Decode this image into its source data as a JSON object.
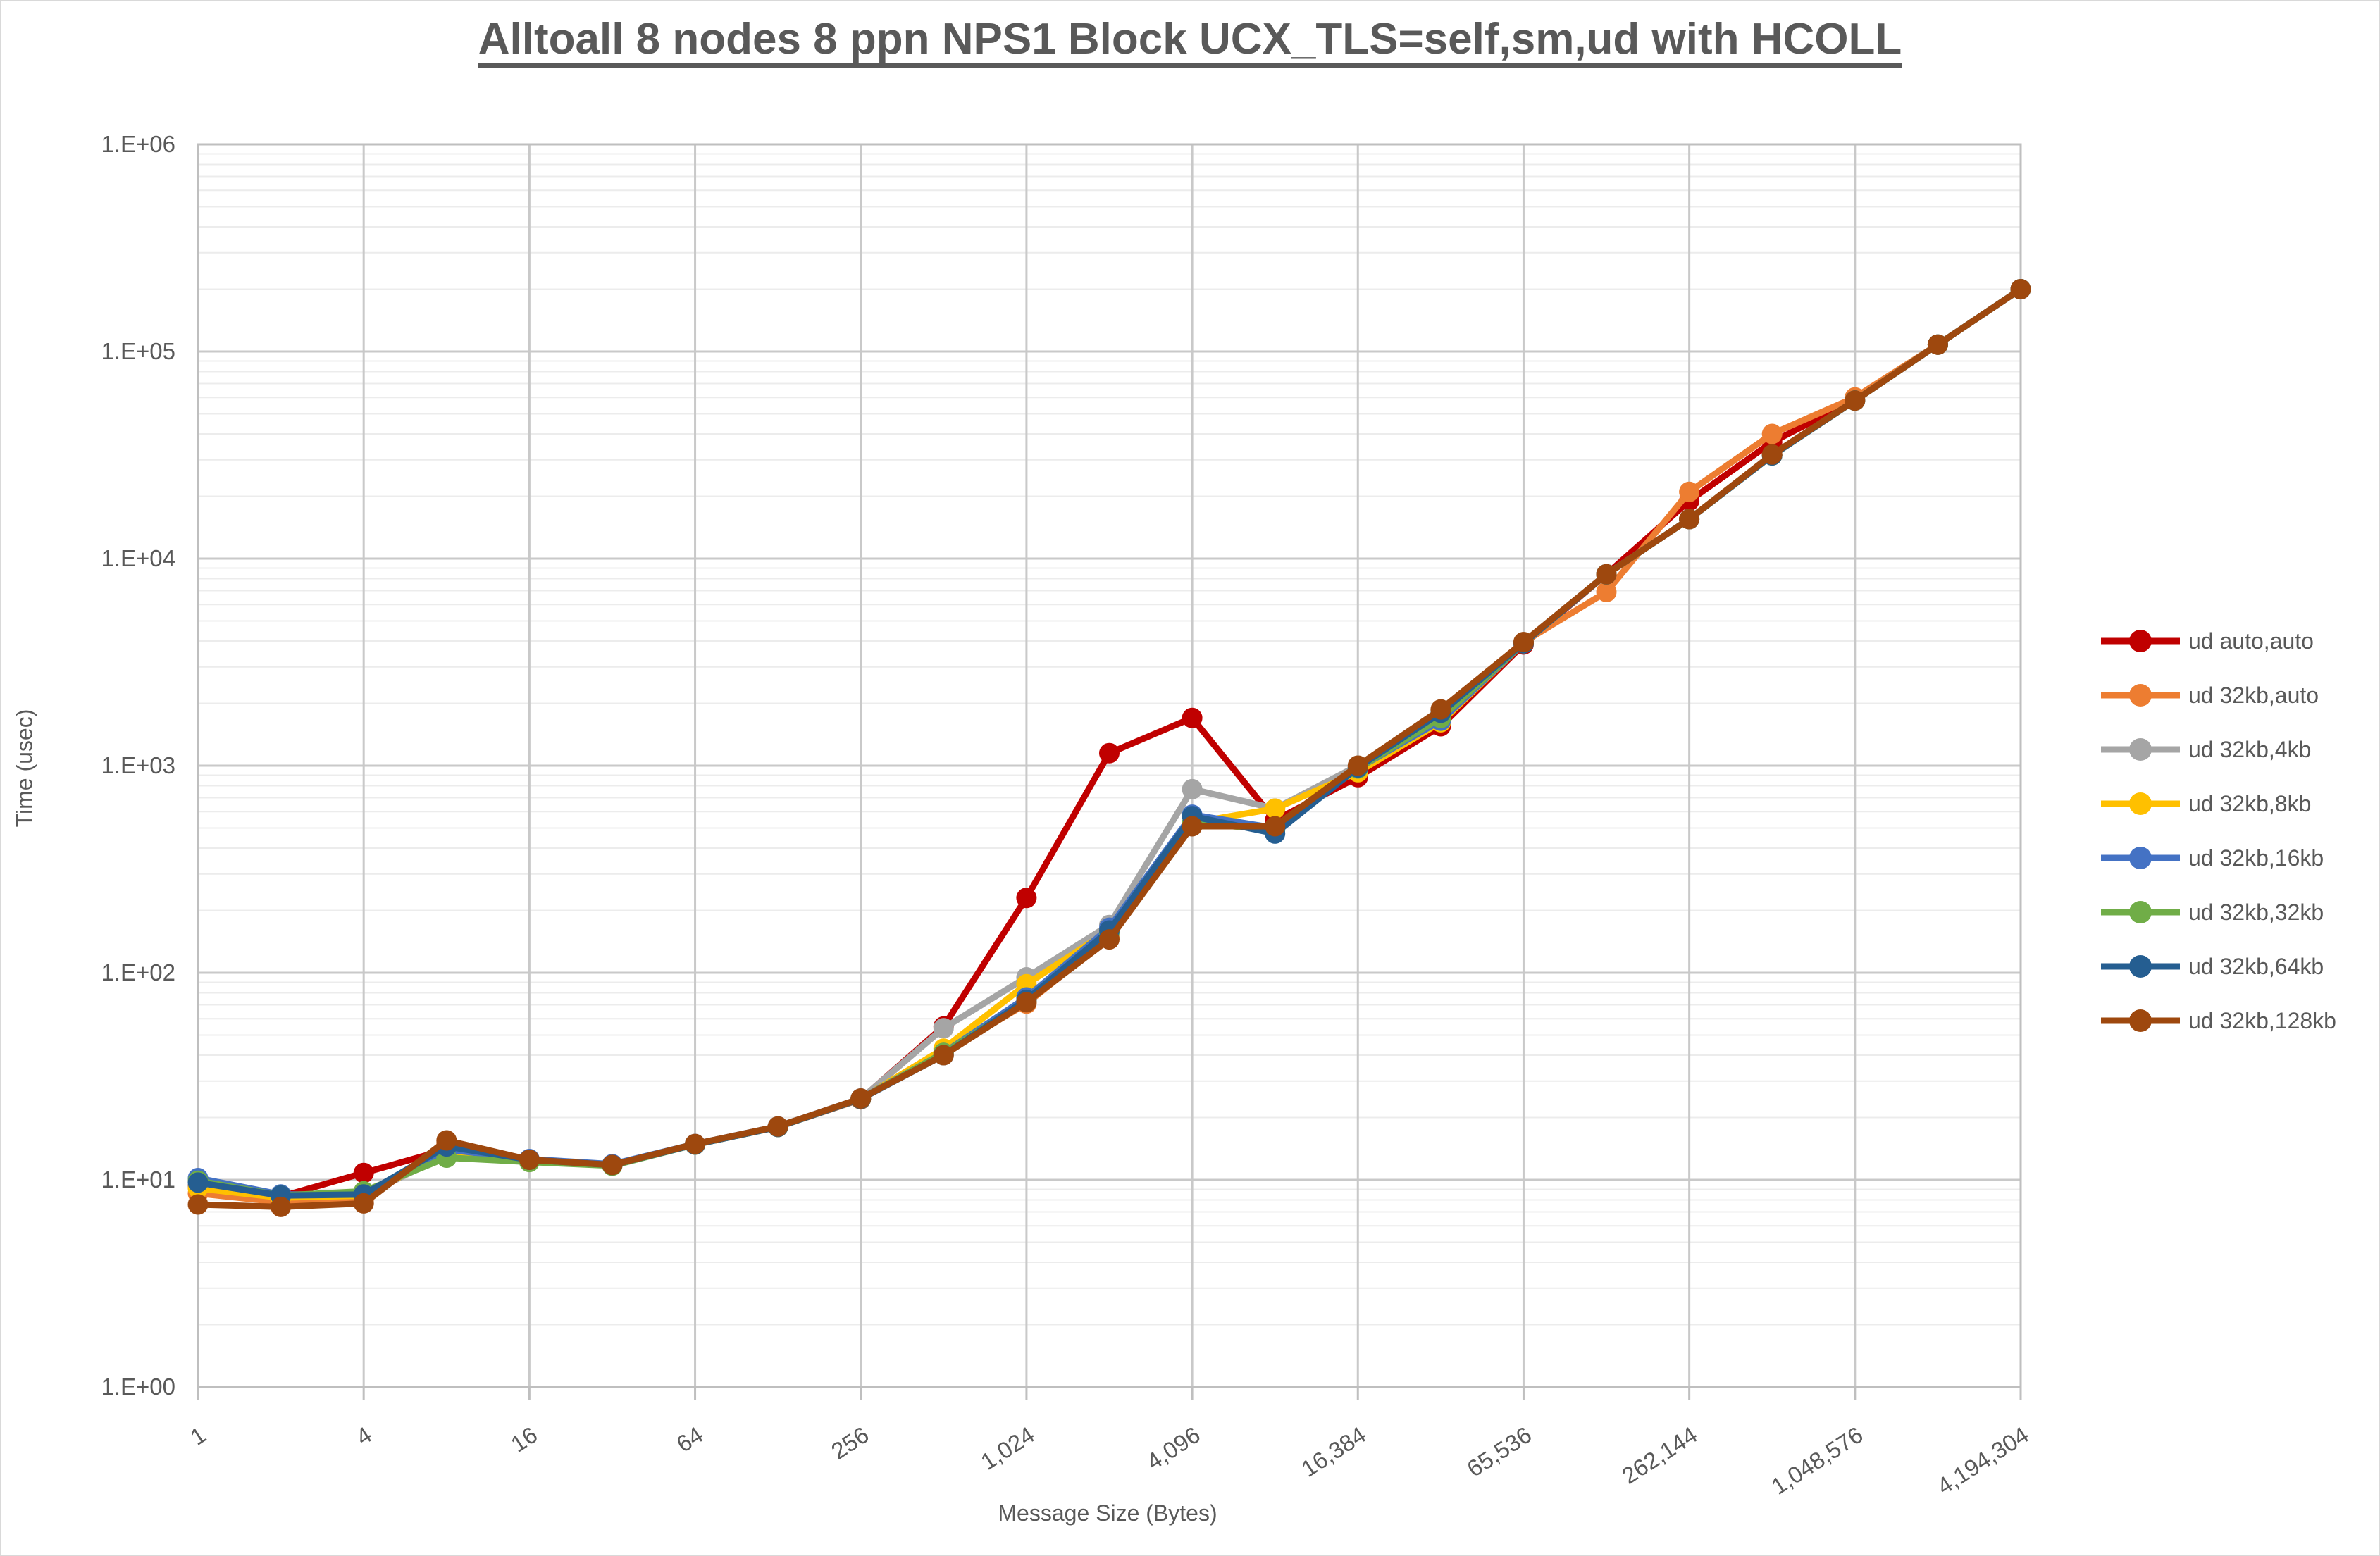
{
  "title": "Alltoall 8 nodes 8 ppn NPS1 Block UCX_TLS=self,sm,ud with HCOLL",
  "chart_data": {
    "type": "line",
    "title": "Alltoall 8 nodes 8 ppn NPS1 Block UCX_TLS=self,sm,ud with HCOLL",
    "xlabel": "Message Size (Bytes)",
    "ylabel": "Time (usec)",
    "x_scale": "log2",
    "y_scale": "log10",
    "xlim": [
      1,
      4194304
    ],
    "ylim": [
      1,
      1000000
    ],
    "grid": "major-and-log-minor",
    "legend_position": "right",
    "x": [
      1,
      2,
      4,
      8,
      16,
      32,
      64,
      128,
      256,
      512,
      1024,
      2048,
      4096,
      8192,
      16384,
      32768,
      65536,
      131072,
      262144,
      524288,
      1048576,
      2097152,
      4194304
    ],
    "x_tick_labels": [
      "1",
      "4",
      "16",
      "64",
      "256",
      "1,024",
      "4,096",
      "16,384",
      "65,536",
      "262,144",
      "1,048,576",
      "4,194,304"
    ],
    "x_tick_values": [
      1,
      4,
      16,
      64,
      256,
      1024,
      4096,
      16384,
      65536,
      262144,
      1048576,
      4194304
    ],
    "y_tick_labels": [
      "1.E+00",
      "1.E+01",
      "1.E+02",
      "1.E+03",
      "1.E+04",
      "1.E+05",
      "1.E+06"
    ],
    "series": [
      {
        "name": "ud auto,auto",
        "color": "#C00000",
        "values": [
          9.3,
          8.3,
          10.8,
          14,
          12.4,
          11.8,
          14.8,
          18,
          24.5,
          55,
          230,
          1150,
          1700,
          545,
          880,
          1550,
          3850,
          8400,
          19000,
          36500,
          58500,
          108000,
          200000
        ]
      },
      {
        "name": "ud 32kb,auto",
        "color": "#ED7D31",
        "values": [
          8.6,
          7.8,
          8.0,
          15.0,
          12.4,
          11.8,
          14.8,
          18,
          24.5,
          41,
          71,
          148,
          520,
          500,
          990,
          1850,
          3950,
          6900,
          21000,
          40000,
          60000,
          108000,
          200000
        ]
      },
      {
        "name": "ud 32kb,4kb",
        "color": "#A5A5A5",
        "values": [
          9.2,
          8.3,
          8.4,
          13.2,
          12.5,
          11.8,
          14.8,
          18,
          24.6,
          54,
          95,
          170,
          770,
          620,
          1000,
          1850,
          3950,
          8400,
          15500,
          31500,
          58000,
          108000,
          200000
        ]
      },
      {
        "name": "ud 32kb,8kb",
        "color": "#FFC000",
        "values": [
          9.1,
          8.2,
          8.4,
          13.5,
          12.5,
          11.8,
          14.8,
          18,
          24.6,
          43,
          88,
          160,
          530,
          620,
          930,
          1620,
          3900,
          8400,
          15500,
          31500,
          58000,
          108000,
          200000
        ]
      },
      {
        "name": "ud 32kb,16kb",
        "color": "#4472C4",
        "values": [
          10.2,
          8.5,
          8.5,
          14.0,
          12.6,
          11.9,
          14.9,
          18.1,
          24.7,
          41,
          76,
          165,
          580,
          500,
          970,
          1650,
          3900,
          8400,
          15500,
          31500,
          58000,
          108000,
          200000
        ]
      },
      {
        "name": "ud 32kb,32kb",
        "color": "#70AD47",
        "values": [
          9.9,
          8.4,
          8.8,
          12.8,
          12.2,
          11.7,
          14.8,
          18,
          24.6,
          41,
          73,
          155,
          530,
          490,
          970,
          1700,
          3900,
          8400,
          15500,
          31500,
          58000,
          108000,
          200000
        ]
      },
      {
        "name": "ud 32kb,64kb",
        "color": "#255E91",
        "values": [
          9.7,
          8.4,
          8.5,
          14.5,
          12.5,
          11.8,
          14.8,
          18,
          24.6,
          40,
          74,
          160,
          570,
          470,
          980,
          1800,
          3900,
          8400,
          15500,
          31500,
          58000,
          108000,
          200000
        ]
      },
      {
        "name": "ud 32kb,128kb",
        "color": "#9E480E",
        "values": [
          7.6,
          7.4,
          7.7,
          15.5,
          12.5,
          11.8,
          14.9,
          18.1,
          24.7,
          40,
          72,
          145,
          510,
          510,
          1000,
          1870,
          3950,
          8400,
          15500,
          31800,
          58000,
          108000,
          200000
        ]
      }
    ]
  },
  "colors": {
    "text": "#595959",
    "grid_major": "#C9C9C9",
    "grid_minor": "#ECECEC",
    "plot_border": "#BFBFBF",
    "background": "#FFFFFF"
  }
}
